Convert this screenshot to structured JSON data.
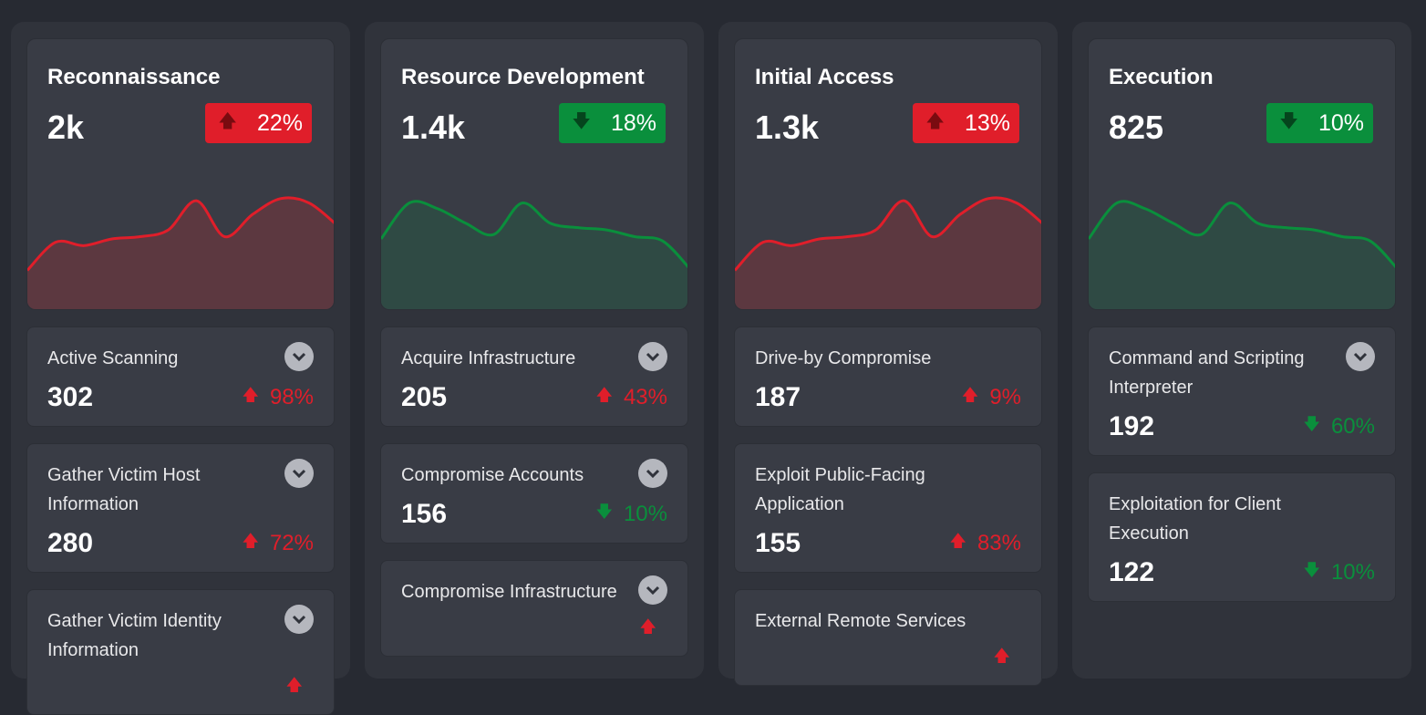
{
  "colors": {
    "up": "#e01e2a",
    "down": "#0a8f3c",
    "up_fill": "#5c3840",
    "down_fill": "#2f4a44",
    "up_arrow": "#7a0b10",
    "down_arrow": "#05451d"
  },
  "columns": [
    {
      "title": "Reconnaissance",
      "value": "2k",
      "change": "22%",
      "direction": "up",
      "sparkline": [
        20,
        45,
        42,
        48,
        50,
        56,
        82,
        50,
        70,
        84,
        80,
        60
      ],
      "items": [
        {
          "name": "Active Scanning",
          "value": "302",
          "change": "98%",
          "direction": "up",
          "expandable": true
        },
        {
          "name": "Gather Victim Host Information",
          "value": "280",
          "change": "72%",
          "direction": "up",
          "expandable": true
        },
        {
          "name": "Gather Victim Identity Information",
          "value": "",
          "change": "",
          "direction": "up",
          "expandable": true
        }
      ]
    },
    {
      "title": "Resource Development",
      "value": "1.4k",
      "change": "18%",
      "direction": "down",
      "sparkline": [
        48,
        80,
        75,
        62,
        52,
        80,
        62,
        58,
        56,
        50,
        46,
        20
      ],
      "items": [
        {
          "name": "Acquire Infrastructure",
          "value": "205",
          "change": "43%",
          "direction": "up",
          "expandable": true
        },
        {
          "name": "Compromise Accounts",
          "value": "156",
          "change": "10%",
          "direction": "down",
          "expandable": true
        },
        {
          "name": "Compromise Infrastructure",
          "value": "",
          "change": "",
          "direction": "up",
          "expandable": true
        }
      ]
    },
    {
      "title": "Initial Access",
      "value": "1.3k",
      "change": "13%",
      "direction": "up",
      "sparkline": [
        20,
        45,
        42,
        48,
        50,
        56,
        82,
        50,
        70,
        84,
        80,
        60
      ],
      "items": [
        {
          "name": "Drive-by Compromise",
          "value": "187",
          "change": "9%",
          "direction": "up",
          "expandable": false
        },
        {
          "name": "Exploit Public-Facing Application",
          "value": "155",
          "change": "83%",
          "direction": "up",
          "expandable": false
        },
        {
          "name": "External Remote Services",
          "value": "",
          "change": "",
          "direction": "up",
          "expandable": false
        }
      ]
    },
    {
      "title": "Execution",
      "value": "825",
      "change": "10%",
      "direction": "down",
      "sparkline": [
        48,
        80,
        75,
        62,
        52,
        80,
        62,
        58,
        56,
        50,
        46,
        20
      ],
      "items": [
        {
          "name": "Command and Scripting Interpreter",
          "value": "192",
          "change": "60%",
          "direction": "down",
          "expandable": true
        },
        {
          "name": "Exploitation for Client Execution",
          "value": "122",
          "change": "10%",
          "direction": "down",
          "expandable": false
        },
        {
          "name": "",
          "value": "",
          "change": "",
          "direction": "down",
          "expandable": false
        }
      ]
    }
  ]
}
